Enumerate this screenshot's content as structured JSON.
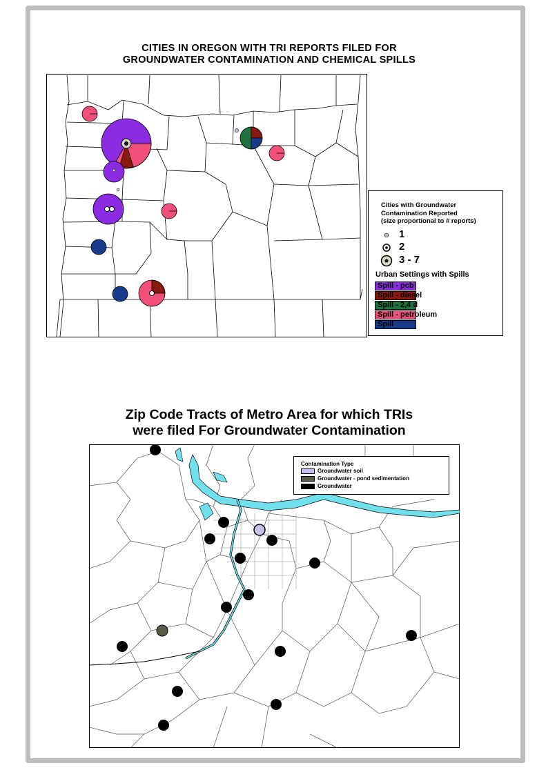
{
  "map1": {
    "title_line1": "CITIES IN OREGON WITH TRI REPORTS FILED FOR",
    "title_line2": "GROUNDWATER CONTAMINATION AND CHEMICAL SPILLS",
    "legend": {
      "heading": [
        "Cities with Groundwater",
        "Contamination Reported",
        "(size proportional to # reports)"
      ],
      "size_classes": [
        {
          "label": "1",
          "icon": "small-dot-symbol"
        },
        {
          "label": "2",
          "icon": "medium-dot-symbol"
        },
        {
          "label": "3 - 7",
          "icon": "large-dot-symbol"
        }
      ],
      "spill_heading": "Urban Settings with Spills",
      "spills": [
        {
          "label": "Spill - pcb",
          "color": "#8b2be2"
        },
        {
          "label": "Spill - diesel",
          "color": "#8a1a10"
        },
        {
          "label": "Spill - 2,4 d",
          "color": "#207040"
        },
        {
          "label": "Spill - petroleum",
          "color": "#f0507a"
        },
        {
          "label": "Spill",
          "color": "#1a3a8a"
        }
      ]
    }
  },
  "map2": {
    "title_line1": "Zip Code Tracts of Metro Area for which TRIs",
    "title_line2": "were filed For Groundwater Contamination",
    "legend": {
      "heading": "Contamination Type",
      "types": [
        {
          "label": "Groundwater soil",
          "color": "#c8c0f0"
        },
        {
          "label": "Groundwater - pond sedimentation",
          "color": "#5a5a48"
        },
        {
          "label": "Groundwater",
          "color": "#000000"
        }
      ]
    },
    "river_color": "#6fe0ec"
  }
}
